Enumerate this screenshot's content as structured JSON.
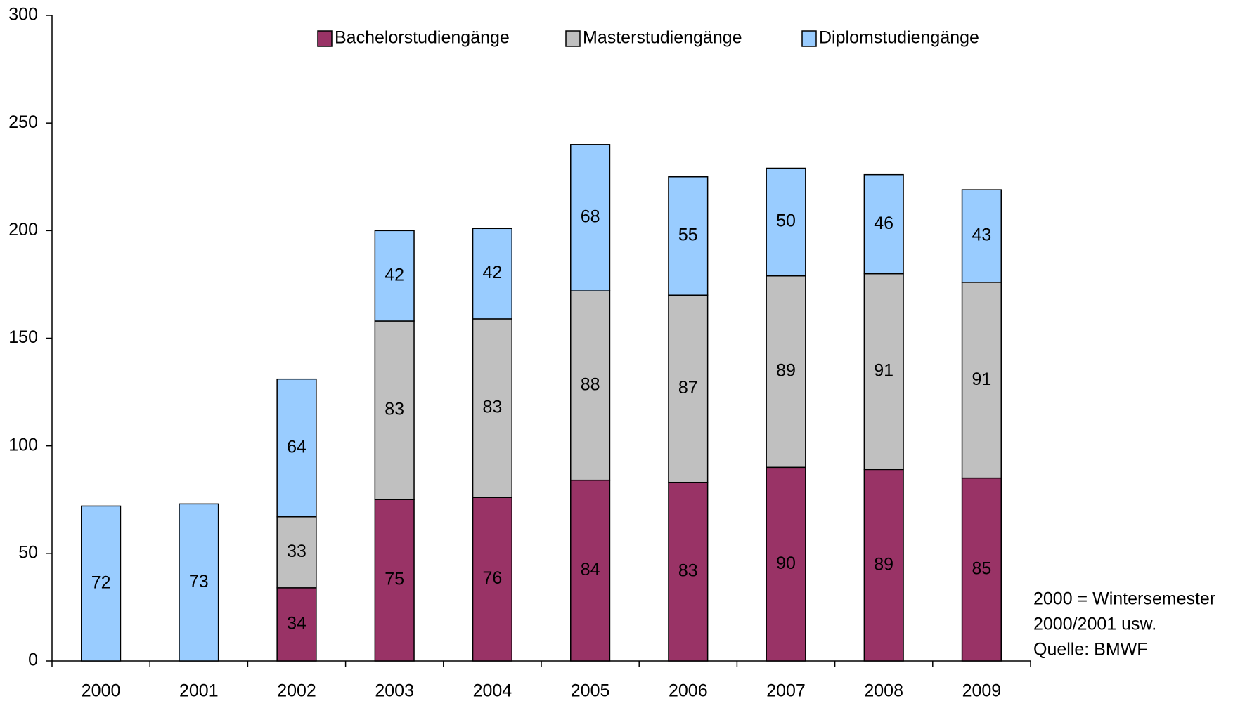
{
  "chart_data": {
    "type": "stacked_bar",
    "categories": [
      "2000",
      "2001",
      "2002",
      "2003",
      "2004",
      "2005",
      "2006",
      "2007",
      "2008",
      "2009"
    ],
    "series": [
      {
        "name": "Bachelorstudiengänge",
        "color": "#993366",
        "values": [
          null,
          null,
          34,
          75,
          76,
          84,
          83,
          90,
          89,
          85
        ]
      },
      {
        "name": "Masterstudiengänge",
        "color": "#c0c0c0",
        "values": [
          null,
          null,
          33,
          83,
          83,
          88,
          87,
          89,
          91,
          91
        ]
      },
      {
        "name": "Diplomstudiengänge",
        "color": "#99ccff",
        "values": [
          72,
          73,
          64,
          42,
          42,
          68,
          55,
          50,
          46,
          43
        ]
      }
    ],
    "ylim": [
      0,
      300
    ],
    "yticks": [
      0,
      50,
      100,
      150,
      200,
      250,
      300
    ],
    "legend": "top",
    "note": [
      "2000 = Wintersemester",
      "2000/2001 usw.",
      "Quelle: BMWF"
    ]
  }
}
